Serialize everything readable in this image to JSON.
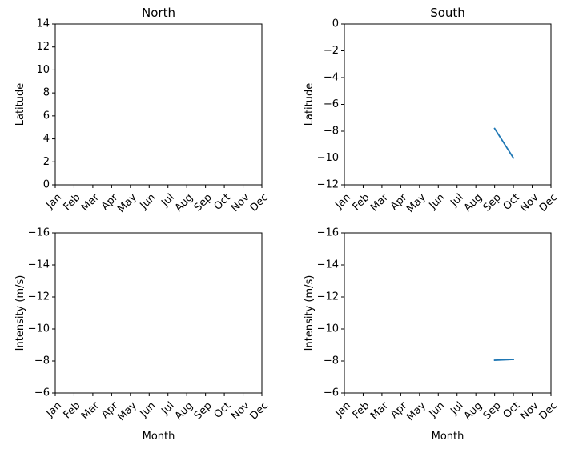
{
  "chart_data": [
    {
      "type": "line",
      "title": "North",
      "xlabel": "",
      "ylabel": "Latitude",
      "categories": [
        "Jan",
        "Feb",
        "Mar",
        "Apr",
        "May",
        "Jun",
        "Jul",
        "Aug",
        "Sep",
        "Oct",
        "Nov",
        "Dec"
      ],
      "ylim": [
        0,
        14
      ],
      "yticks": [
        0,
        2,
        4,
        6,
        8,
        10,
        12,
        14
      ],
      "yticks_labels": [
        "0",
        "2",
        "4",
        "6",
        "8",
        "10",
        "12",
        "14"
      ],
      "inverted_y": false,
      "grid": false,
      "series": []
    },
    {
      "type": "line",
      "title": "South",
      "xlabel": "",
      "ylabel": "Latitude",
      "categories": [
        "Jan",
        "Feb",
        "Mar",
        "Apr",
        "May",
        "Jun",
        "Jul",
        "Aug",
        "Sep",
        "Oct",
        "Nov",
        "Dec"
      ],
      "ylim": [
        -12,
        0
      ],
      "yticks": [
        -12,
        -10,
        -8,
        -6,
        -4,
        -2,
        0
      ],
      "yticks_labels": [
        "−12",
        "−10",
        "−8",
        "−6",
        "−4",
        "−2",
        "0"
      ],
      "inverted_y": false,
      "grid": false,
      "series": [
        {
          "color": "#1f77b4",
          "points": [
            [
              "Sep",
              -7.8
            ],
            [
              "Oct",
              -10.0
            ]
          ]
        }
      ]
    },
    {
      "type": "line",
      "title": "",
      "xlabel": "Month",
      "ylabel": "Intensity (m/s)",
      "categories": [
        "Jan",
        "Feb",
        "Mar",
        "Apr",
        "May",
        "Jun",
        "Jul",
        "Aug",
        "Sep",
        "Oct",
        "Nov",
        "Dec"
      ],
      "ylim": [
        -6,
        -16
      ],
      "yticks": [
        -6,
        -8,
        -10,
        -12,
        -14,
        -16
      ],
      "yticks_labels": [
        "−6",
        "−8",
        "−10",
        "−12",
        "−14",
        "−16"
      ],
      "inverted_y": true,
      "grid": false,
      "series": []
    },
    {
      "type": "line",
      "title": "",
      "xlabel": "Month",
      "ylabel": "Intensity (m/s)",
      "categories": [
        "Jan",
        "Feb",
        "Mar",
        "Apr",
        "May",
        "Jun",
        "Jul",
        "Aug",
        "Sep",
        "Oct",
        "Nov",
        "Dec"
      ],
      "ylim": [
        -6,
        -16
      ],
      "yticks": [
        -6,
        -8,
        -10,
        -12,
        -14,
        -16
      ],
      "yticks_labels": [
        "−6",
        "−8",
        "−10",
        "−12",
        "−14",
        "−16"
      ],
      "inverted_y": true,
      "grid": false,
      "series": [
        {
          "color": "#1f77b4",
          "points": [
            [
              "Sep",
              -8.05
            ],
            [
              "Oct",
              -8.1
            ]
          ]
        }
      ]
    }
  ]
}
